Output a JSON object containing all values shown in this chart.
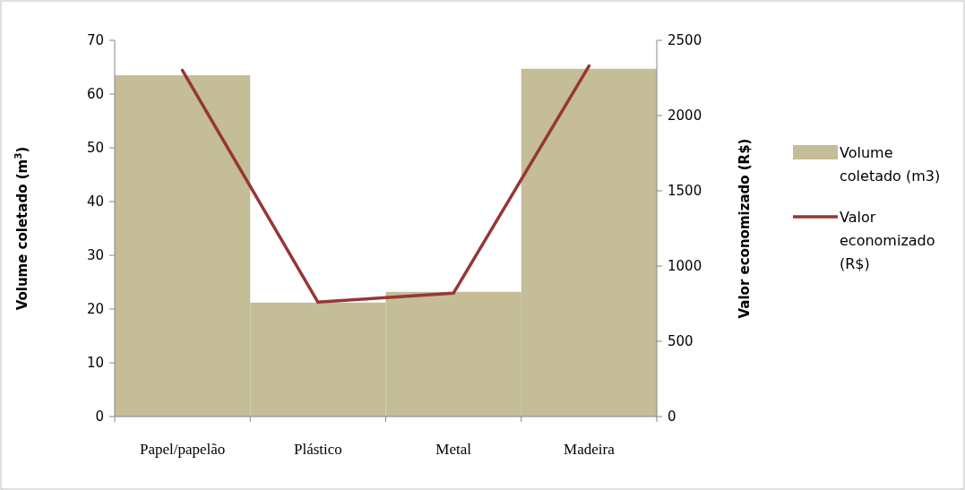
{
  "chart_data": {
    "type": "bar",
    "categories": [
      "Papel/papelão",
      "Plástico",
      "Metal",
      "Madeira"
    ],
    "ylabel": "Volume coletado (m$^{3}$)",
    "y2label": "Valor economizado  (R$)",
    "ylim": [
      0,
      70
    ],
    "yticks": [
      0,
      10,
      20,
      30,
      40,
      50,
      60,
      70
    ],
    "y2lim": [
      0,
      2500
    ],
    "y2ticks": [
      0,
      500,
      1000,
      1500,
      2000,
      2500
    ],
    "legend": "right",
    "grid": false,
    "series": [
      {
        "name": "Volume coletado (m3)",
        "color": "#c4bd97",
        "values": [
          63.5,
          21.2,
          23.2,
          64.7
        ]
      },
      {
        "name": "Valor economizado (R$)",
        "type": "line",
        "axis": "y2",
        "color": "#953735",
        "values": [
          2300,
          760,
          820,
          2330
        ]
      }
    ]
  }
}
